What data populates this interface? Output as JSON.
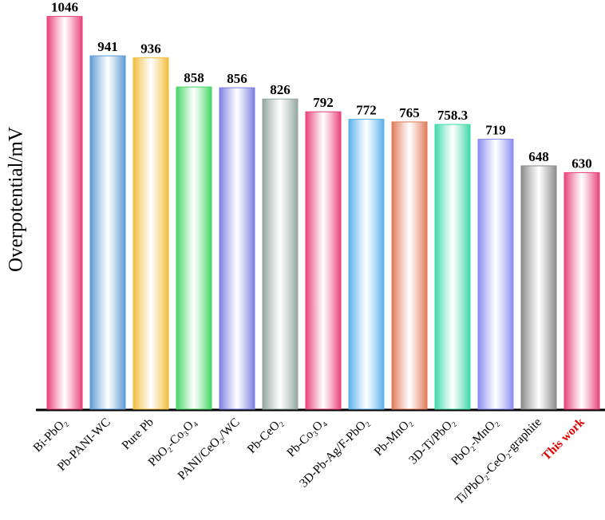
{
  "chart_data": {
    "type": "bar",
    "y_label": "Overpotential/mV",
    "categories": [
      "Bi-PbO₂",
      "Pb-PANI-WC",
      "Pure Pb",
      "PbO₂-Co₃O₄",
      "PANI/CeO₂/WC",
      "Pb-CeO₂",
      "Pb-Co₃O₄",
      "3D-Pb-Ag/F-PbO₂",
      "Pb-MnO₂",
      "3D-Ti/PbO₂",
      "PbO₂-MnO₂",
      "Ti/PbO₂-CeO₂-graphite",
      "This work"
    ],
    "values": [
      1046,
      941,
      936,
      858,
      856,
      826,
      792,
      772,
      765,
      758.3,
      719,
      648,
      630
    ],
    "colors": [
      "#e8417a",
      "#5b9bd5",
      "#f2bd3c",
      "#45d665",
      "#7b7fe0",
      "#93a7a2",
      "#e8417a",
      "#58b2ec",
      "#e07a58",
      "#3ed9a8",
      "#8a8cf2",
      "#8a8a8a",
      "#e8417a"
    ],
    "label_colors": [
      "#000000",
      "#000000",
      "#000000",
      "#000000",
      "#000000",
      "#000000",
      "#000000",
      "#000000",
      "#000000",
      "#000000",
      "#000000",
      "#000000",
      "#e00000"
    ],
    "ylim": [
      0,
      1060
    ]
  }
}
